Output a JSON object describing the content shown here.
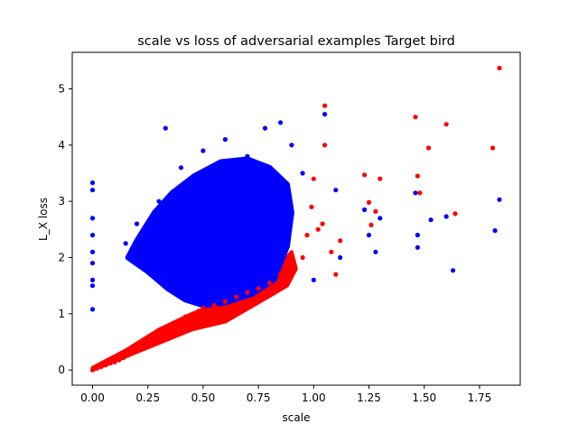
{
  "chart_data": {
    "type": "scatter",
    "title": "scale vs loss of adversarial examples Target bird",
    "xlabel": "scale",
    "ylabel": "L_X loss",
    "xlim": [
      -0.092,
      1.934
    ],
    "ylim": [
      -0.27,
      5.65
    ],
    "xticks": [
      0.0,
      0.25,
      0.5,
      0.75,
      1.0,
      1.25,
      1.5,
      1.75
    ],
    "xtick_labels": [
      "0.00",
      "0.25",
      "0.50",
      "0.75",
      "1.00",
      "1.25",
      "1.50",
      "1.75"
    ],
    "yticks": [
      0,
      1,
      2,
      3,
      4,
      5
    ],
    "ytick_labels": [
      "0",
      "1",
      "2",
      "3",
      "4",
      "5"
    ],
    "grid": false,
    "legend": "none",
    "series": [
      {
        "color": "#ff0000",
        "points": [
          [
            0.0,
            0.0
          ],
          [
            0.02,
            0.03
          ],
          [
            0.04,
            0.06
          ],
          [
            0.06,
            0.09
          ],
          [
            0.08,
            0.12
          ],
          [
            0.1,
            0.14
          ],
          [
            0.12,
            0.18
          ],
          [
            0.14,
            0.22
          ],
          [
            0.16,
            0.26
          ],
          [
            0.18,
            0.3
          ],
          [
            0.2,
            0.34
          ],
          [
            0.22,
            0.38
          ],
          [
            0.24,
            0.43
          ],
          [
            0.26,
            0.48
          ],
          [
            0.28,
            0.52
          ],
          [
            0.3,
            0.58
          ],
          [
            0.32,
            0.63
          ],
          [
            0.34,
            0.7
          ],
          [
            0.36,
            0.75
          ],
          [
            0.38,
            0.82
          ],
          [
            0.4,
            0.88
          ],
          [
            0.42,
            0.95
          ],
          [
            0.45,
            0.98
          ],
          [
            0.48,
            1.05
          ],
          [
            0.5,
            1.1
          ],
          [
            0.55,
            1.15
          ],
          [
            0.6,
            1.22
          ],
          [
            0.65,
            1.3
          ],
          [
            0.7,
            1.38
          ],
          [
            0.75,
            1.45
          ],
          [
            0.8,
            1.55
          ],
          [
            0.85,
            1.7
          ],
          [
            0.9,
            1.8
          ],
          [
            0.95,
            2.0
          ],
          [
            0.97,
            2.4
          ],
          [
            0.99,
            2.9
          ],
          [
            1.0,
            3.4
          ],
          [
            1.02,
            2.5
          ],
          [
            1.04,
            2.6
          ],
          [
            1.05,
            4.7
          ],
          [
            1.05,
            4.0
          ],
          [
            1.08,
            2.1
          ],
          [
            1.1,
            1.7
          ],
          [
            1.12,
            2.3
          ],
          [
            1.23,
            3.47
          ],
          [
            1.25,
            2.98
          ],
          [
            1.26,
            2.58
          ],
          [
            1.28,
            2.82
          ],
          [
            1.3,
            3.4
          ],
          [
            1.46,
            4.5
          ],
          [
            1.47,
            3.45
          ],
          [
            1.48,
            3.15
          ],
          [
            1.52,
            3.95
          ],
          [
            1.6,
            4.37
          ],
          [
            1.64,
            2.78
          ],
          [
            1.81,
            3.95
          ],
          [
            1.84,
            5.37
          ]
        ]
      },
      {
        "color": "#0000ff",
        "points": [
          [
            0.0,
            3.33
          ],
          [
            0.0,
            3.2
          ],
          [
            0.0,
            2.7
          ],
          [
            0.0,
            2.4
          ],
          [
            0.0,
            2.1
          ],
          [
            0.0,
            1.9
          ],
          [
            0.0,
            1.6
          ],
          [
            0.0,
            1.5
          ],
          [
            0.0,
            1.08
          ],
          [
            0.15,
            2.25
          ],
          [
            0.2,
            2.6
          ],
          [
            0.3,
            3.0
          ],
          [
            0.33,
            4.3
          ],
          [
            0.4,
            3.6
          ],
          [
            0.5,
            3.9
          ],
          [
            0.6,
            4.1
          ],
          [
            0.7,
            3.8
          ],
          [
            0.78,
            4.3
          ],
          [
            0.85,
            4.4
          ],
          [
            0.9,
            4.0
          ],
          [
            0.95,
            3.5
          ],
          [
            1.0,
            1.6
          ],
          [
            1.05,
            4.55
          ],
          [
            1.1,
            3.2
          ],
          [
            1.12,
            2.0
          ],
          [
            1.23,
            2.85
          ],
          [
            1.25,
            2.4
          ],
          [
            1.28,
            2.1
          ],
          [
            1.3,
            2.7
          ],
          [
            1.46,
            3.15
          ],
          [
            1.47,
            2.4
          ],
          [
            1.47,
            2.18
          ],
          [
            1.53,
            2.67
          ],
          [
            1.6,
            2.73
          ],
          [
            1.63,
            1.77
          ],
          [
            1.82,
            2.48
          ],
          [
            1.84,
            3.03
          ]
        ]
      }
    ]
  }
}
